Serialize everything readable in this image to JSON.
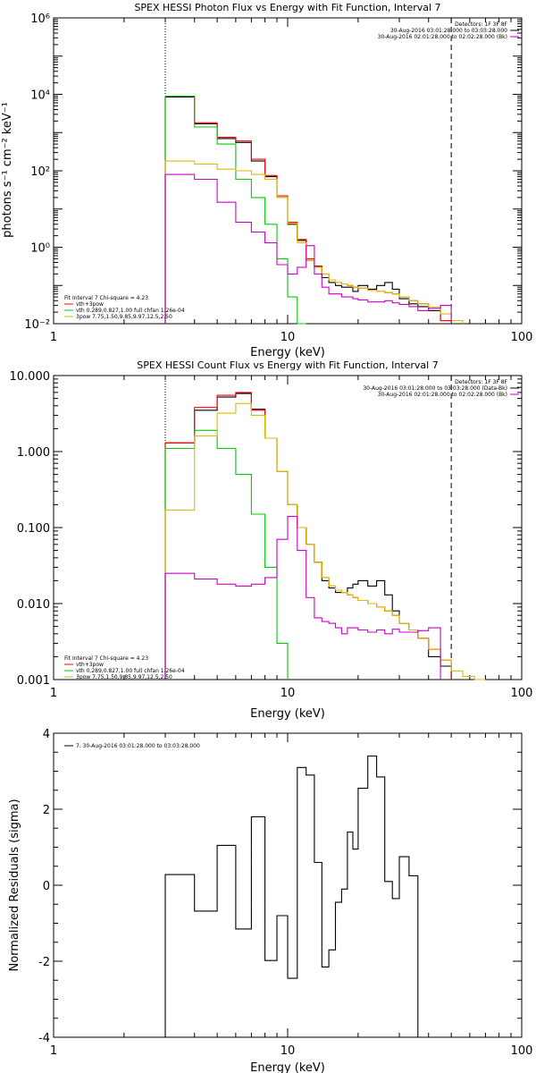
{
  "chart_data": [
    {
      "type": "line",
      "title": "SPEX HESSI Photon Flux vs Energy with Fit Function, Interval 7",
      "xlabel": "Energy (keV)",
      "ylabel": "photons s⁻¹ cm⁻² keV⁻¹",
      "xscale": "log",
      "yscale": "log",
      "xlim": [
        1,
        100
      ],
      "ylim": [
        0.01,
        1000000
      ],
      "x_ticks": [
        {
          "v": 1,
          "label": "1"
        },
        {
          "v": 10,
          "label": "10"
        },
        {
          "v": 100,
          "label": "100"
        }
      ],
      "y_ticks": [
        {
          "v": 0.01,
          "label": "10⁻²"
        },
        {
          "v": 1,
          "label": "10⁰"
        },
        {
          "v": 100,
          "label": "10²"
        },
        {
          "v": 10000,
          "label": "10⁴"
        },
        {
          "v": 1000000,
          "label": "10⁶"
        }
      ],
      "vlines": [
        {
          "x": 3,
          "style": "dotted"
        },
        {
          "x": 50,
          "style": "dashed"
        }
      ],
      "edges": [
        3,
        4,
        5,
        6,
        7,
        8,
        9,
        10,
        11,
        12,
        13,
        14,
        15,
        16,
        17,
        18,
        19,
        20,
        22,
        24,
        26,
        28,
        30,
        33,
        36,
        40,
        45,
        50,
        56
      ],
      "series": [
        {
          "name": "data",
          "color": "#000000",
          "values": [
            8500,
            1700,
            700,
            550,
            180,
            70,
            20,
            4,
            1.5,
            0.45,
            0.32,
            0.16,
            0.12,
            0.1,
            0.09,
            0.09,
            0.07,
            0.1,
            0.08,
            0.1,
            0.12,
            0.08,
            0.045,
            0.033,
            0.028,
            0.022,
            0.012
          ]
        },
        {
          "name": "vth+3pow",
          "color": "#ff0000",
          "values": [
            9000,
            1800,
            750,
            600,
            200,
            75,
            22,
            4.5,
            1.6,
            0.5,
            0.31,
            0.2,
            0.14,
            0.12,
            0.11,
            0.1,
            0.09,
            0.085,
            0.075,
            0.07,
            0.065,
            0.06,
            0.05,
            0.04,
            0.033,
            0.027,
            0.012
          ]
        },
        {
          "name": "vth 0.289,0.827,1.00  full chfan 1.26e-04",
          "color": "#00cc00",
          "values": [
            9000,
            1400,
            500,
            60,
            20,
            4,
            0.5,
            0.05,
            0.01
          ]
        },
        {
          "name": "3pow 7.75,1.50,9.85,9.97,12.5,2.50",
          "color": "#ddbb00",
          "values": [
            180,
            150,
            110,
            100,
            80,
            60,
            20,
            4.2,
            1.3,
            0.45,
            0.3,
            0.2,
            0.14,
            0.12,
            0.11,
            0.1,
            0.09,
            0.085,
            0.075,
            0.07,
            0.065,
            0.06,
            0.05,
            0.04,
            0.033,
            0.027,
            0.018,
            0.012
          ]
        },
        {
          "name": "bk",
          "color": "#cc00cc",
          "values": [
            80,
            60,
            15,
            4.5,
            2.5,
            1.3,
            0.35,
            0.2,
            0.3,
            1.1,
            0.2,
            0.09,
            0.06,
            0.06,
            0.05,
            0.05,
            0.045,
            0.042,
            0.037,
            0.037,
            0.04,
            0.035,
            0.032,
            0.028,
            0.022,
            0.025,
            0.03
          ]
        }
      ],
      "legend": {
        "header": "Fit Interval 7   Chi-square = 4.23",
        "items": [
          {
            "label": "vth+3pow",
            "color": "#ff0000"
          },
          {
            "label": "vth 0.289,0.827,1.00  full chfan 1.26e-04",
            "color": "#00cc00"
          },
          {
            "label": "3pow 7.75,1.50,9.85,9.97,12.5,2.50",
            "color": "#ddbb00"
          }
        ],
        "placement": "bottom-left"
      },
      "legend_right": {
        "header": "Detectors: 1F 3F 8F",
        "items": [
          {
            "label": "30-Aug-2016 03:01:28.000 to 03:03:28.000",
            "color": "#000000"
          },
          {
            "label": "30-Aug-2016 02:01:28.000 to 02:02:28.000 (Bk)",
            "color": "#cc00cc"
          }
        ],
        "placement": "top-right"
      }
    },
    {
      "type": "line",
      "title": "SPEX HESSI Count Flux vs Energy with Fit Function, Interval 7",
      "xlabel": "Energy (keV)",
      "ylabel": "",
      "xscale": "log",
      "yscale": "log",
      "xlim": [
        1,
        100
      ],
      "ylim": [
        0.001,
        10
      ],
      "x_ticks": [
        {
          "v": 1,
          "label": "1"
        },
        {
          "v": 10,
          "label": "10"
        },
        {
          "v": 100,
          "label": "100"
        }
      ],
      "y_ticks": [
        {
          "v": 0.001,
          "label": "0.001"
        },
        {
          "v": 0.01,
          "label": "0.010"
        },
        {
          "v": 0.1,
          "label": "0.100"
        },
        {
          "v": 1,
          "label": "1.000"
        },
        {
          "v": 10,
          "label": "10.000"
        }
      ],
      "vlines": [
        {
          "x": 3,
          "style": "dotted"
        },
        {
          "x": 50,
          "style": "dashed"
        }
      ],
      "edges": [
        3,
        4,
        5,
        6,
        7,
        8,
        9,
        10,
        11,
        12,
        13,
        14,
        15,
        16,
        17,
        18,
        19,
        20,
        22,
        24,
        26,
        28,
        30,
        33,
        36,
        40,
        45,
        50,
        56,
        63,
        70
      ],
      "series": [
        {
          "name": "data",
          "color": "#000000",
          "values": [
            1.3,
            3.5,
            5.2,
            5.8,
            3.6,
            1.5,
            0.55,
            0.2,
            0.1,
            0.06,
            0.035,
            0.02,
            0.016,
            0.014,
            0.014,
            0.016,
            0.018,
            0.02,
            0.017,
            0.02,
            0.013,
            0.008,
            0.0055,
            0.0045,
            0.0035,
            0.002,
            0.0015
          ]
        },
        {
          "name": "vth+3pow",
          "color": "#ff0000",
          "values": [
            1.3,
            3.8,
            5.5,
            6.0,
            3.5,
            1.5,
            0.55,
            0.2,
            0.1,
            0.06,
            0.035,
            0.022,
            0.017,
            0.015,
            0.014,
            0.013,
            0.012,
            0.011,
            0.01,
            0.009,
            0.008,
            0.007,
            0.0055,
            0.0045,
            0.0035,
            0.0025,
            0.0018
          ]
        },
        {
          "name": "vth 0.289,0.827,1.00  full chfan 1.26e-04",
          "color": "#00cc00",
          "values": [
            1.1,
            1.9,
            1.1,
            0.5,
            0.15,
            0.03,
            0.003
          ]
        },
        {
          "name": "3pow 7.75,1.50,9.85,9.97,12.5,2.50",
          "color": "#ddbb00",
          "values": [
            0.17,
            1.6,
            3.2,
            4.3,
            3.0,
            1.5,
            0.55,
            0.2,
            0.1,
            0.06,
            0.035,
            0.022,
            0.017,
            0.015,
            0.014,
            0.013,
            0.012,
            0.011,
            0.01,
            0.009,
            0.008,
            0.007,
            0.0055,
            0.0045,
            0.0035,
            0.0025,
            0.0018,
            0.0013,
            0.0011,
            0.001
          ]
        },
        {
          "name": "bk",
          "color": "#cc00cc",
          "values": [
            0.025,
            0.021,
            0.018,
            0.017,
            0.018,
            0.022,
            0.07,
            0.14,
            0.05,
            0.012,
            0.0065,
            0.0058,
            0.0055,
            0.0048,
            0.004,
            0.0048,
            0.0048,
            0.0045,
            0.0042,
            0.0045,
            0.004,
            0.0046,
            0.0042,
            0.0042,
            0.0044,
            0.0048
          ]
        }
      ],
      "legend": {
        "header": "Fit Interval 7   Chi-square = 4.23",
        "items": [
          {
            "label": "vth+3pow",
            "color": "#ff0000"
          },
          {
            "label": "vth 0.289,0.827,1.00  full chfan 1.26e-04",
            "color": "#00cc00"
          },
          {
            "label": "3pow 7.75,1.50,9.85,9.97,12.5,2.50",
            "color": "#ddbb00"
          }
        ],
        "placement": "bottom-left"
      },
      "legend_right": {
        "header": "Detectors: 1F 3F 8F",
        "items": [
          {
            "label": "30-Aug-2016 03:01:28.000 to 03:03:28.000 (Data-Bk)",
            "color": "#000000"
          },
          {
            "label": "30-Aug-2016 02:01:28.000 to 02:02:28.000 (Bk)",
            "color": "#cc00cc"
          }
        ],
        "placement": "top-right"
      }
    },
    {
      "type": "line",
      "title": "",
      "xlabel": "Energy (keV)",
      "ylabel": "Normalized Residuals (sigma)",
      "xscale": "log",
      "yscale": "linear",
      "xlim": [
        1,
        100
      ],
      "ylim": [
        -4,
        4
      ],
      "x_ticks": [
        {
          "v": 1,
          "label": "1"
        },
        {
          "v": 10,
          "label": "10"
        },
        {
          "v": 100,
          "label": "100"
        }
      ],
      "y_ticks": [
        {
          "v": -4,
          "label": "-4"
        },
        {
          "v": -2,
          "label": "-2"
        },
        {
          "v": 0,
          "label": "0"
        },
        {
          "v": 2,
          "label": "2"
        },
        {
          "v": 4,
          "label": "4"
        }
      ],
      "vlines": [],
      "edges": [
        3,
        4,
        5,
        6,
        7,
        8,
        9,
        10,
        11,
        12,
        13,
        14,
        15,
        16,
        17,
        18,
        19,
        20,
        22,
        24,
        26,
        28,
        30,
        33,
        36,
        40,
        45,
        50
      ],
      "series": [
        {
          "name": "7. 30-Aug-2016 03:01:28.000 to 03:03:28.000",
          "color": "#000000",
          "values": [
            0.28,
            -0.68,
            1.05,
            -1.15,
            1.8,
            -1.98,
            -0.8,
            -2.45,
            3.1,
            2.9,
            0.6,
            -2.15,
            -1.7,
            -0.45,
            -0.1,
            1.4,
            0.95,
            2.55,
            3.4,
            2.85,
            0.1,
            -0.35,
            0.75,
            0.25
          ],
          "drop_to_floor": true
        }
      ],
      "legend": {
        "header": "",
        "items": [
          {
            "label": "7. 30-Aug-2016 03:01:28.000 to 03:03:28.000",
            "color": "#000000"
          }
        ],
        "placement": "top-left"
      }
    }
  ]
}
